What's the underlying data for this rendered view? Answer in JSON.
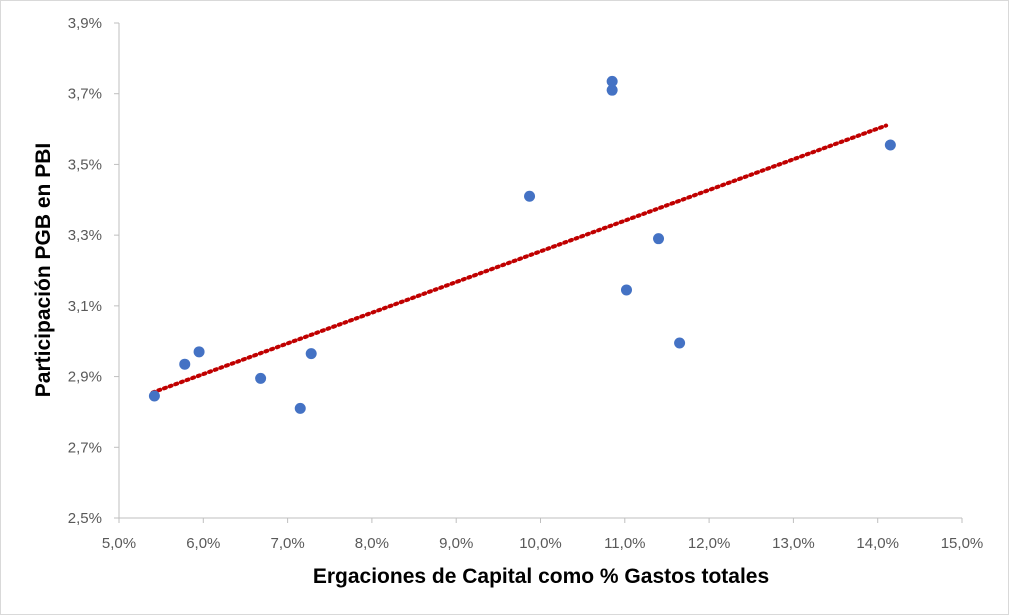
{
  "chart_data": {
    "type": "scatter",
    "xlabel": "Ergaciones de Capital como % Gastos totales",
    "ylabel": "Participación PGB en PBI",
    "xlim": [
      5.0,
      15.0
    ],
    "ylim": [
      2.5,
      3.9
    ],
    "x_ticks": [
      5.0,
      6.0,
      7.0,
      8.0,
      9.0,
      10.0,
      11.0,
      12.0,
      13.0,
      14.0,
      15.0
    ],
    "x_tick_labels": [
      "5,0%",
      "6,0%",
      "7,0%",
      "8,0%",
      "9,0%",
      "10,0%",
      "11,0%",
      "12,0%",
      "13,0%",
      "14,0%",
      "15,0%"
    ],
    "y_ticks": [
      2.5,
      2.7,
      2.9,
      3.1,
      3.3,
      3.5,
      3.7,
      3.9
    ],
    "y_tick_labels": [
      "2,5%",
      "2,7%",
      "2,9%",
      "3,1%",
      "3,3%",
      "3,5%",
      "3,7%",
      "3,9%"
    ],
    "grid": false,
    "legend": "none",
    "series": [
      {
        "points": [
          {
            "x": 5.42,
            "y": 2.845
          },
          {
            "x": 5.78,
            "y": 2.935
          },
          {
            "x": 5.95,
            "y": 2.97
          },
          {
            "x": 6.68,
            "y": 2.895
          },
          {
            "x": 7.15,
            "y": 2.81
          },
          {
            "x": 7.28,
            "y": 2.965
          },
          {
            "x": 9.87,
            "y": 3.41
          },
          {
            "x": 10.85,
            "y": 3.735
          },
          {
            "x": 10.85,
            "y": 3.71
          },
          {
            "x": 11.02,
            "y": 3.145
          },
          {
            "x": 11.4,
            "y": 3.29
          },
          {
            "x": 11.65,
            "y": 2.995
          },
          {
            "x": 14.15,
            "y": 3.555
          }
        ],
        "color": "#4472c4"
      }
    ],
    "trendline": {
      "type": "linear",
      "x": [
        5.4,
        14.1
      ],
      "y": [
        2.855,
        3.61
      ],
      "color": "#c00000",
      "style": "dotted"
    }
  }
}
